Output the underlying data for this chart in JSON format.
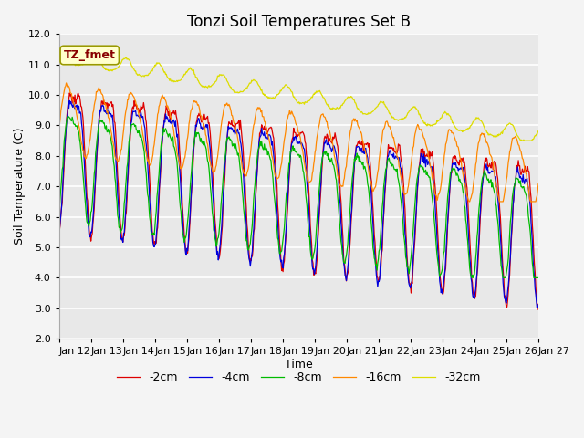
{
  "title": "Tonzi Soil Temperatures Set B",
  "xlabel": "Time",
  "ylabel": "Soil Temperature (C)",
  "ylim": [
    2.0,
    12.0
  ],
  "yticks": [
    2.0,
    3.0,
    4.0,
    5.0,
    6.0,
    7.0,
    8.0,
    9.0,
    10.0,
    11.0,
    12.0
  ],
  "series": {
    "-2cm": {
      "color": "#dd0000"
    },
    "-4cm": {
      "color": "#0000dd"
    },
    "-8cm": {
      "color": "#00bb00"
    },
    "-16cm": {
      "color": "#ff8800"
    },
    "-32cm": {
      "color": "#dddd00"
    }
  },
  "legend_order": [
    "-2cm",
    "-4cm",
    "-8cm",
    "-16cm",
    "-32cm"
  ],
  "annotation_text": "TZ_fmet",
  "background_color": "#e8e8e8",
  "grid_color": "#ffffff",
  "title_fontsize": 12,
  "num_days": 15,
  "pts_per_day": 48
}
